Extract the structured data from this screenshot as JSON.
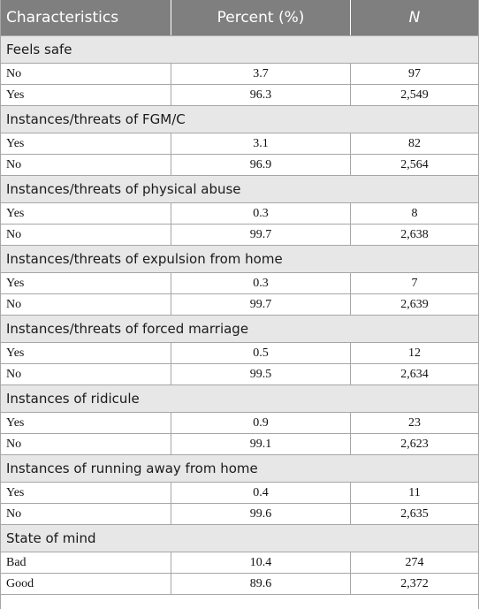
{
  "header": {
    "col1": "Characteristics",
    "col2": "Percent (%)",
    "col3": "N"
  },
  "sections": [
    {
      "title": "Feels safe",
      "rows": [
        {
          "label": "No",
          "percent": "3.7",
          "n": "97"
        },
        {
          "label": "Yes",
          "percent": "96.3",
          "n": "2,549"
        }
      ]
    },
    {
      "title": "Instances/threats of FGM/C",
      "rows": [
        {
          "label": "Yes",
          "percent": "3.1",
          "n": "82"
        },
        {
          "label": "No",
          "percent": "96.9",
          "n": "2,564"
        }
      ]
    },
    {
      "title": "Instances/threats of physical abuse",
      "rows": [
        {
          "label": "Yes",
          "percent": "0.3",
          "n": "8"
        },
        {
          "label": "No",
          "percent": "99.7",
          "n": "2,638"
        }
      ]
    },
    {
      "title": "Instances/threats of expulsion from home",
      "rows": [
        {
          "label": "Yes",
          "percent": "0.3",
          "n": "7"
        },
        {
          "label": "No",
          "percent": "99.7",
          "n": "2,639"
        }
      ]
    },
    {
      "title": "Instances/threats of forced marriage",
      "rows": [
        {
          "label": "Yes",
          "percent": "0.5",
          "n": "12"
        },
        {
          "label": "No",
          "percent": "99.5",
          "n": "2,634"
        }
      ]
    },
    {
      "title": "Instances of ridicule",
      "rows": [
        {
          "label": "Yes",
          "percent": "0.9",
          "n": "23"
        },
        {
          "label": "No",
          "percent": "99.1",
          "n": "2,623"
        }
      ]
    },
    {
      "title": "Instances of running away from home",
      "rows": [
        {
          "label": "Yes",
          "percent": "0.4",
          "n": "11"
        },
        {
          "label": "No",
          "percent": "99.6",
          "n": "2,635"
        }
      ]
    },
    {
      "title": "State of mind",
      "rows": [
        {
          "label": "Bad",
          "percent": "10.4",
          "n": "274"
        },
        {
          "label": "Good",
          "percent": "89.6",
          "n": "2,372"
        }
      ]
    }
  ]
}
